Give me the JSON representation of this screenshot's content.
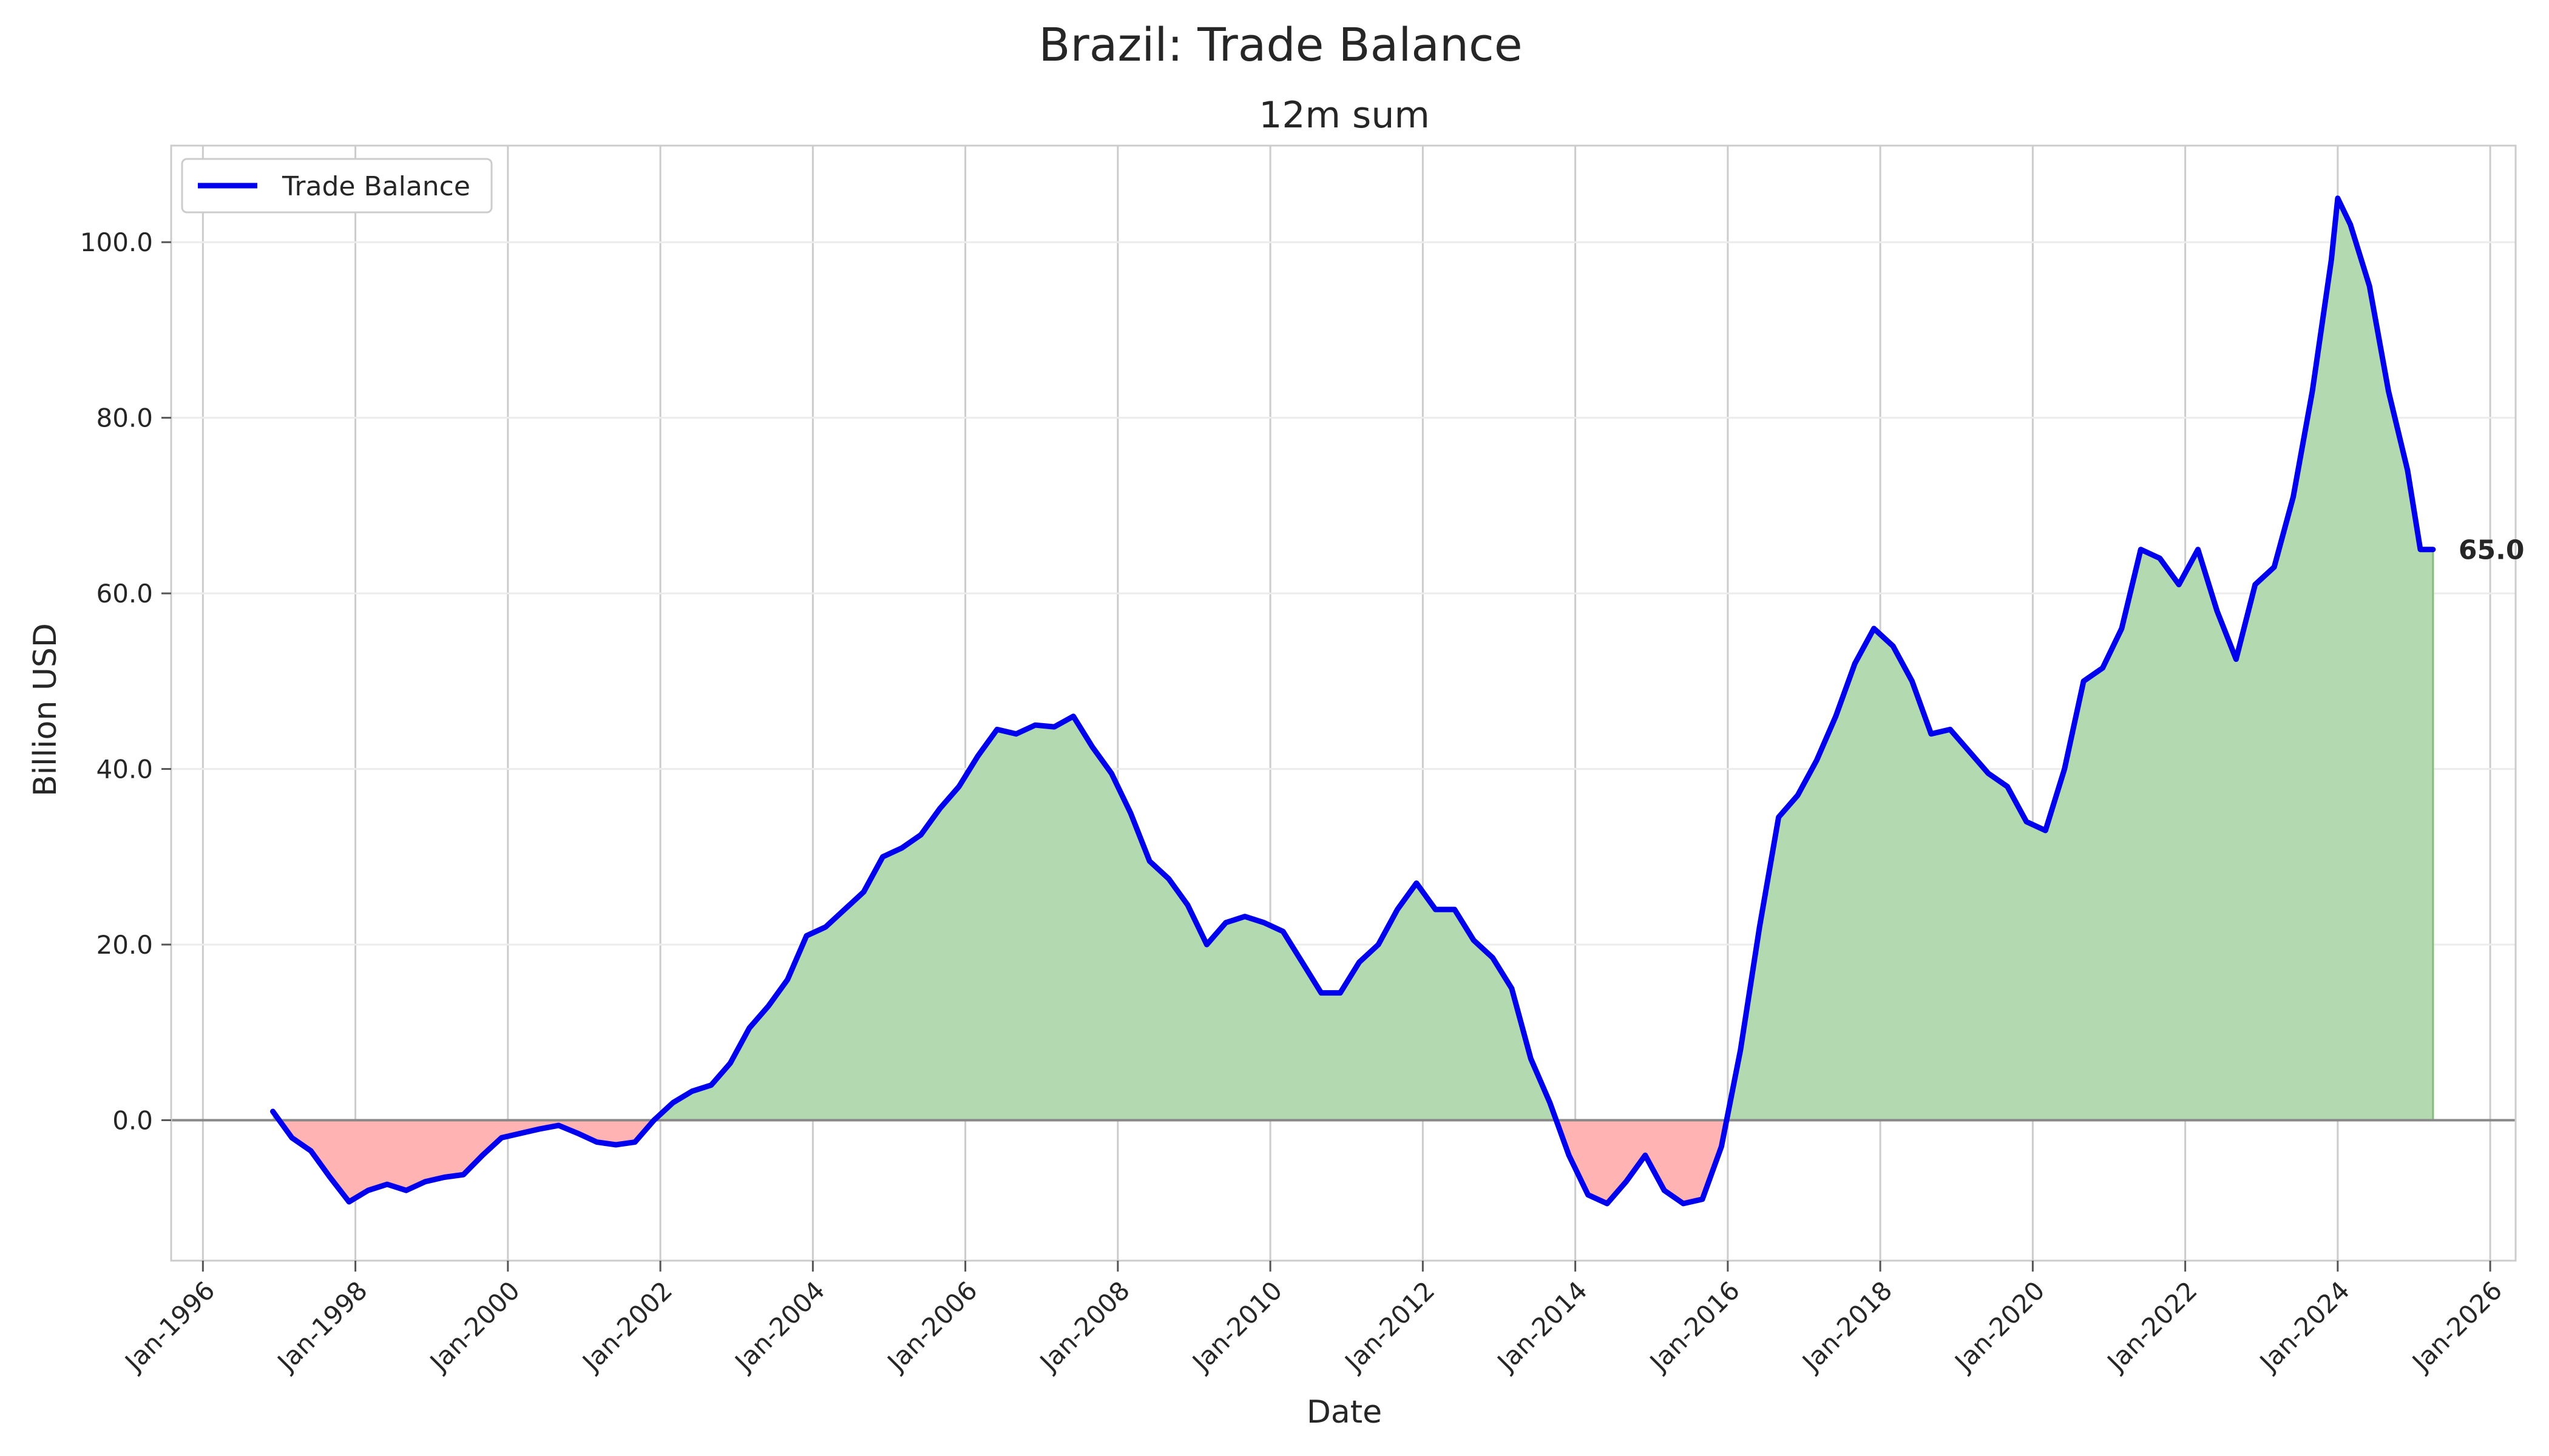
{
  "chart_data": {
    "type": "area",
    "title": "Brazil: Trade Balance",
    "subtitle": "12m sum",
    "xlabel": "Date",
    "ylabel": "Billion USD",
    "legend": {
      "position": "top-left",
      "label": "Trade Balance"
    },
    "grid": true,
    "last_value_label": "65.0",
    "xlim": [
      "1995-08",
      "2026-05"
    ],
    "ylim": [
      -16,
      111
    ],
    "x_ticks": [
      "Jan-1996",
      "Jan-1998",
      "Jan-2000",
      "Jan-2002",
      "Jan-2004",
      "Jan-2006",
      "Jan-2008",
      "Jan-2010",
      "Jan-2012",
      "Jan-2014",
      "Jan-2016",
      "Jan-2018",
      "Jan-2020",
      "Jan-2022",
      "Jan-2024",
      "Jan-2026"
    ],
    "y_ticks": [
      "0.0",
      "20.0",
      "40.0",
      "60.0",
      "80.0",
      "100.0"
    ],
    "colors": {
      "line": "#0000ee",
      "positive_fill": "#b3d9b0",
      "negative_fill": "#ffb3b3",
      "zero_line": "#888888"
    },
    "series": [
      {
        "name": "Trade Balance",
        "points": [
          [
            "1996-12",
            1.0
          ],
          [
            "1997-03",
            -2.0
          ],
          [
            "1997-06",
            -3.5
          ],
          [
            "1997-09",
            -6.5
          ],
          [
            "1997-12",
            -9.3
          ],
          [
            "1998-03",
            -8.0
          ],
          [
            "1998-06",
            -7.3
          ],
          [
            "1998-09",
            -8.0
          ],
          [
            "1998-12",
            -7.0
          ],
          [
            "1999-03",
            -6.5
          ],
          [
            "1999-06",
            -6.2
          ],
          [
            "1999-09",
            -4.0
          ],
          [
            "1999-12",
            -2.0
          ],
          [
            "2000-03",
            -1.5
          ],
          [
            "2000-06",
            -1.0
          ],
          [
            "2000-09",
            -0.6
          ],
          [
            "2000-12",
            -1.5
          ],
          [
            "2001-03",
            -2.5
          ],
          [
            "2001-06",
            -2.8
          ],
          [
            "2001-09",
            -2.5
          ],
          [
            "2001-12",
            0.0
          ],
          [
            "2002-03",
            2.0
          ],
          [
            "2002-06",
            3.3
          ],
          [
            "2002-09",
            4.0
          ],
          [
            "2002-12",
            6.5
          ],
          [
            "2003-03",
            10.5
          ],
          [
            "2003-06",
            13.0
          ],
          [
            "2003-09",
            16.0
          ],
          [
            "2003-12",
            21.0
          ],
          [
            "2004-03",
            22.0
          ],
          [
            "2004-06",
            24.0
          ],
          [
            "2004-09",
            26.0
          ],
          [
            "2004-12",
            30.0
          ],
          [
            "2005-03",
            31.0
          ],
          [
            "2005-06",
            32.5
          ],
          [
            "2005-09",
            35.5
          ],
          [
            "2005-12",
            38.0
          ],
          [
            "2006-03",
            41.5
          ],
          [
            "2006-06",
            44.5
          ],
          [
            "2006-09",
            44.0
          ],
          [
            "2006-12",
            45.0
          ],
          [
            "2007-03",
            44.8
          ],
          [
            "2007-06",
            46.0
          ],
          [
            "2007-09",
            42.5
          ],
          [
            "2007-12",
            39.5
          ],
          [
            "2008-03",
            35.0
          ],
          [
            "2008-06",
            29.5
          ],
          [
            "2008-09",
            27.5
          ],
          [
            "2008-12",
            24.5
          ],
          [
            "2009-03",
            20.0
          ],
          [
            "2009-06",
            22.5
          ],
          [
            "2009-09",
            23.2
          ],
          [
            "2009-12",
            22.5
          ],
          [
            "2010-03",
            21.5
          ],
          [
            "2010-06",
            18.0
          ],
          [
            "2010-09",
            14.5
          ],
          [
            "2010-12",
            14.5
          ],
          [
            "2011-03",
            18.0
          ],
          [
            "2011-06",
            20.0
          ],
          [
            "2011-09",
            24.0
          ],
          [
            "2011-12",
            27.0
          ],
          [
            "2012-03",
            24.0
          ],
          [
            "2012-06",
            24.0
          ],
          [
            "2012-09",
            20.5
          ],
          [
            "2012-12",
            18.5
          ],
          [
            "2013-03",
            15.0
          ],
          [
            "2013-06",
            7.0
          ],
          [
            "2013-09",
            2.0
          ],
          [
            "2013-12",
            -4.0
          ],
          [
            "2014-03",
            -8.5
          ],
          [
            "2014-06",
            -9.5
          ],
          [
            "2014-09",
            -7.0
          ],
          [
            "2014-12",
            -4.0
          ],
          [
            "2015-03",
            -8.0
          ],
          [
            "2015-06",
            -9.5
          ],
          [
            "2015-09",
            -9.0
          ],
          [
            "2015-12",
            -3.0
          ],
          [
            "2016-03",
            8.0
          ],
          [
            "2016-06",
            22.0
          ],
          [
            "2016-09",
            34.5
          ],
          [
            "2016-12",
            37.0
          ],
          [
            "2017-03",
            41.0
          ],
          [
            "2017-06",
            46.0
          ],
          [
            "2017-09",
            52.0
          ],
          [
            "2017-12",
            56.0
          ],
          [
            "2018-03",
            54.0
          ],
          [
            "2018-06",
            50.0
          ],
          [
            "2018-09",
            44.0
          ],
          [
            "2018-12",
            44.5
          ],
          [
            "2019-03",
            42.0
          ],
          [
            "2019-06",
            39.5
          ],
          [
            "2019-09",
            38.0
          ],
          [
            "2019-12",
            34.0
          ],
          [
            "2020-03",
            33.0
          ],
          [
            "2020-06",
            40.0
          ],
          [
            "2020-09",
            50.0
          ],
          [
            "2020-12",
            51.5
          ],
          [
            "2021-03",
            56.0
          ],
          [
            "2021-06",
            65.0
          ],
          [
            "2021-09",
            64.0
          ],
          [
            "2021-12",
            61.0
          ],
          [
            "2022-03",
            65.0
          ],
          [
            "2022-06",
            58.0
          ],
          [
            "2022-09",
            52.5
          ],
          [
            "2022-12",
            61.0
          ],
          [
            "2023-03",
            63.0
          ],
          [
            "2023-06",
            71.0
          ],
          [
            "2023-09",
            83.0
          ],
          [
            "2023-12",
            98.0
          ],
          [
            "2024-01",
            105.0
          ],
          [
            "2024-03",
            102.0
          ],
          [
            "2024-06",
            95.0
          ],
          [
            "2024-09",
            83.0
          ],
          [
            "2024-12",
            74.0
          ],
          [
            "2025-02",
            65.0
          ],
          [
            "2025-04",
            65.0
          ]
        ]
      }
    ]
  }
}
